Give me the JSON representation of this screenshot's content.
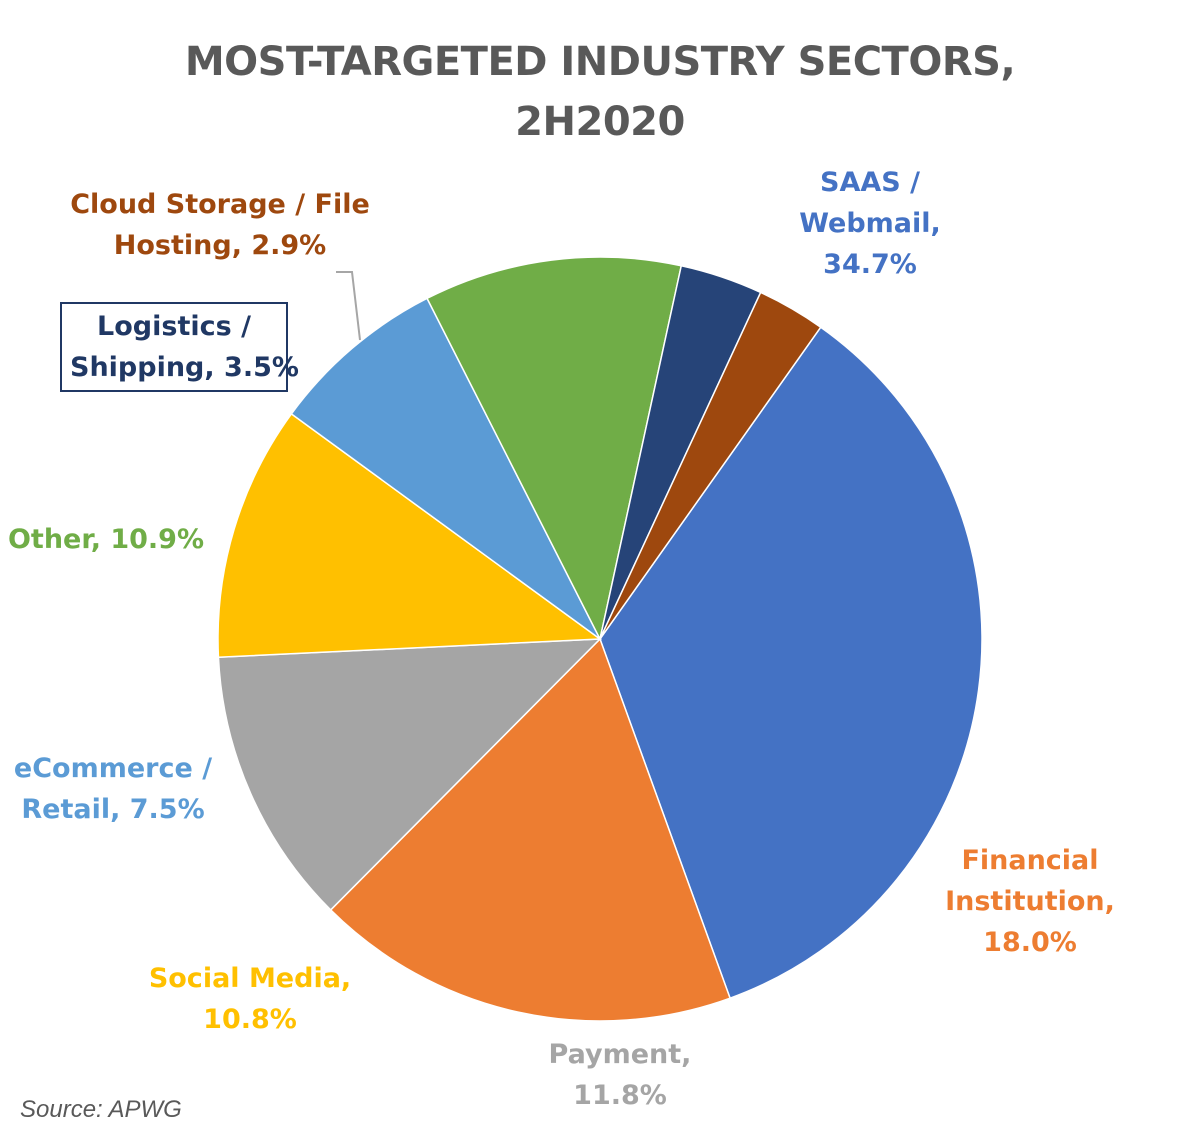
{
  "chart_data": {
    "type": "pie",
    "title_lines": [
      "MOST-TARGETED INDUSTRY SECTORS,",
      "2H2020"
    ],
    "source": "Source: APWG",
    "slices": [
      {
        "label_lines": [
          "SAAS /",
          "Webmail,",
          "34.7%"
        ],
        "value": 34.7,
        "color": "#4472C4"
      },
      {
        "label_lines": [
          "Financial",
          "Institution,",
          "18.0%"
        ],
        "value": 18.0,
        "color": "#ED7D31"
      },
      {
        "label_lines": [
          "Payment,",
          "11.8%"
        ],
        "value": 11.8,
        "color": "#A5A5A5"
      },
      {
        "label_lines": [
          "Social Media,",
          "10.8%"
        ],
        "value": 10.8,
        "color": "#FFC000"
      },
      {
        "label_lines": [
          "eCommerce /",
          "Retail, 7.5%"
        ],
        "value": 7.5,
        "color": "#5B9BD5"
      },
      {
        "label_lines": [
          "Other, 10.9%"
        ],
        "value": 10.9,
        "color": "#70AD47"
      },
      {
        "label_lines": [
          "Logistics /",
          "Shipping, 3.5%"
        ],
        "value": 3.5,
        "color": "#264478"
      },
      {
        "label_lines": [
          "Cloud Storage / File",
          "Hosting, 2.9%"
        ],
        "value": 2.9,
        "color": "#9E480E"
      }
    ],
    "label_colors": {
      "saas": "#4472C4",
      "financial": "#ED7D31",
      "payment": "#A5A5A5",
      "social": "#FFC000",
      "ecommerce": "#5B9BD5",
      "other": "#70AD47",
      "logistics": "#203864",
      "cloud": "#9E480E"
    }
  }
}
